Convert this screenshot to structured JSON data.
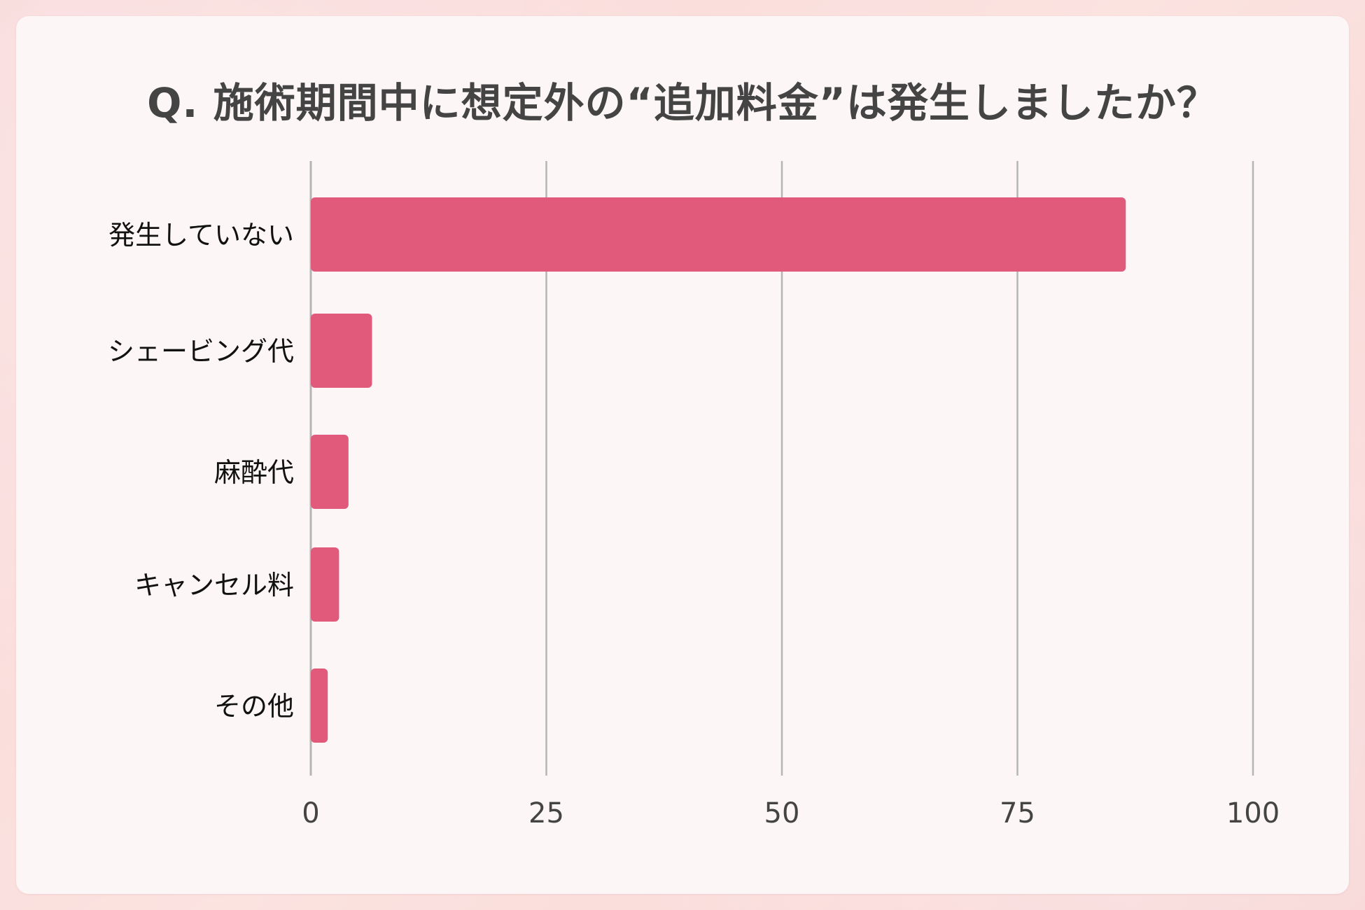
{
  "title": "Q. 施術期間中に想定外の“追加料金”は発生しましたか？",
  "chart_data": {
    "type": "bar",
    "orientation": "horizontal",
    "categories": [
      "発生していない",
      "シェービング代",
      "麻酔代",
      "キャンセル料",
      "その他"
    ],
    "values": [
      86.5,
      6.5,
      4,
      3,
      1.8
    ],
    "xlim": [
      0,
      100
    ],
    "xticks": [
      "0",
      "25",
      "50",
      "75",
      "100"
    ],
    "grid": true,
    "bar_color": "#e15a7c",
    "grid_color": "#b5b5b5"
  }
}
